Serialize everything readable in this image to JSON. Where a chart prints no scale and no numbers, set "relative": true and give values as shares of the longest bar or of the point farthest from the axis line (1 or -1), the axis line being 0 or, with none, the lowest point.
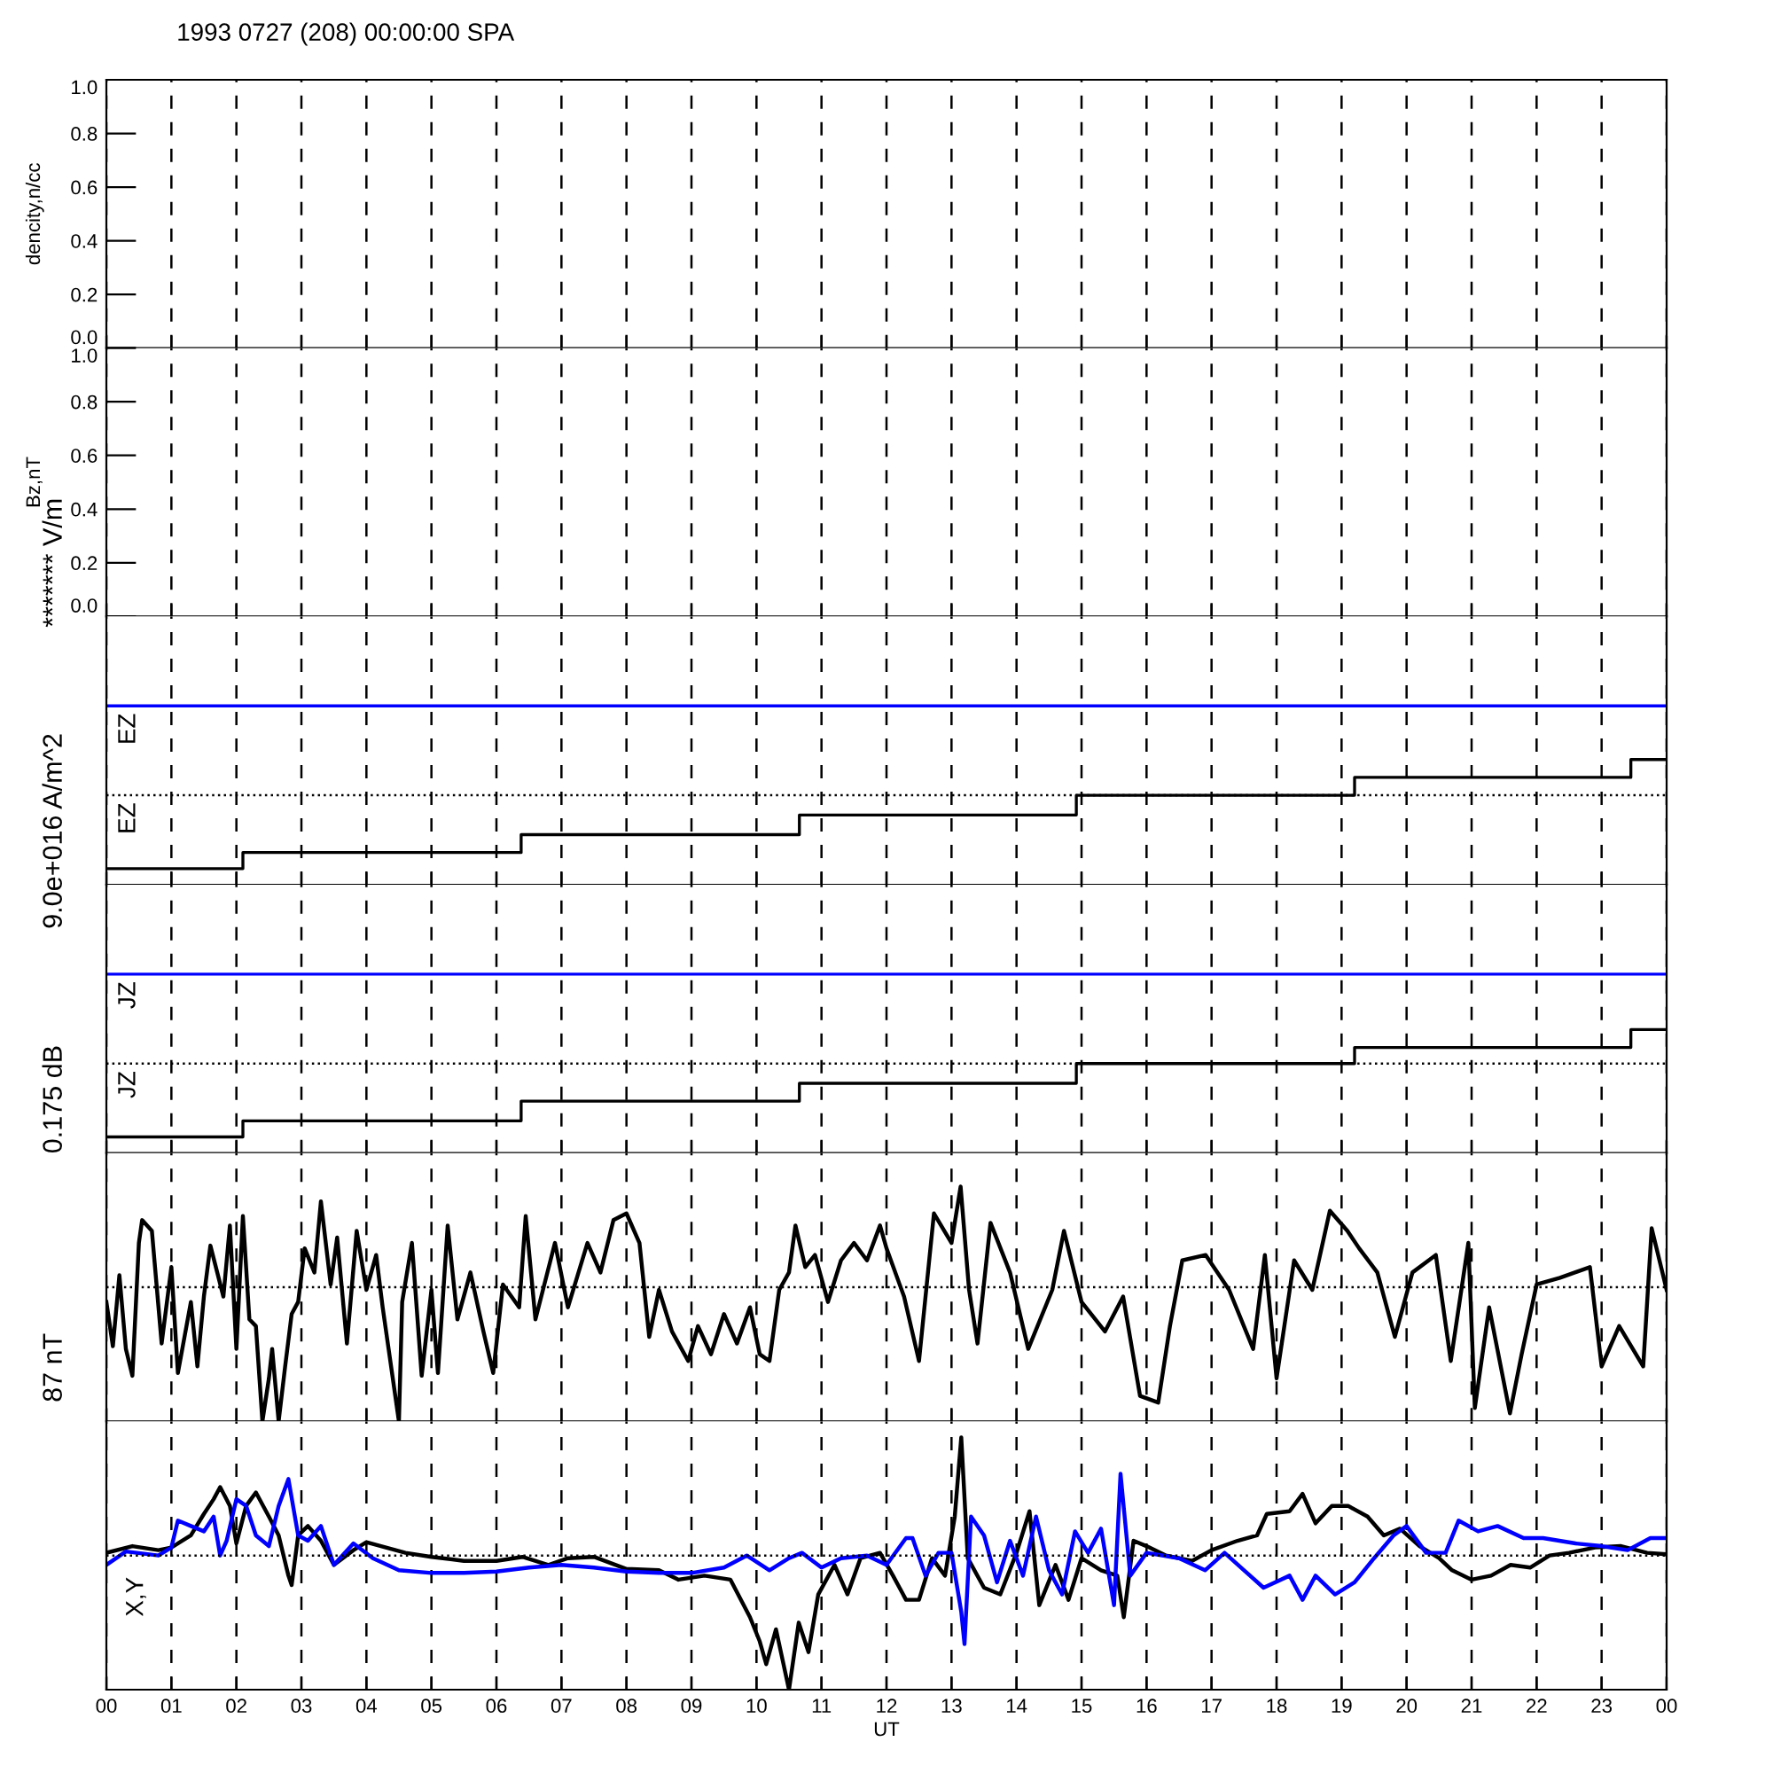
{
  "chart_data": [
    {
      "type": "line",
      "title": "1993 0727 (208) 00:00:00 SPA",
      "ylabel": "dencity,n/cc",
      "xlim": [
        0,
        24
      ],
      "ylim": [
        0,
        1
      ],
      "xticks": [
        0,
        1,
        2,
        3,
        4,
        5,
        6,
        7,
        8,
        9,
        10,
        11,
        12,
        13,
        14,
        15,
        16,
        17,
        18,
        19,
        20,
        21,
        22,
        23,
        24
      ],
      "yticks": [
        {
          "value": 0,
          "label": "0.0"
        },
        {
          "value": 0.2,
          "label": "0.2"
        },
        {
          "value": 0.4,
          "label": "0.4"
        },
        {
          "value": 0.6,
          "label": "0.6"
        },
        {
          "value": 0.8,
          "label": "0.8"
        },
        {
          "value": 1,
          "label": "1.0"
        }
      ],
      "grid": "x",
      "tick_labels": "y"
    },
    {
      "type": "line",
      "ylabel": "Bz,nT",
      "xlim": [
        0,
        24
      ],
      "ylim": [
        0,
        1
      ],
      "xticks": [
        0,
        1,
        2,
        3,
        4,
        5,
        6,
        7,
        8,
        9,
        10,
        11,
        12,
        13,
        14,
        15,
        16,
        17,
        18,
        19,
        20,
        21,
        22,
        23,
        24
      ],
      "yticks": [
        {
          "value": 0,
          "label": "0.0"
        },
        {
          "value": 0.2,
          "label": "0.2"
        },
        {
          "value": 0.4,
          "label": "0.4"
        },
        {
          "value": 0.6,
          "label": "0.6"
        },
        {
          "value": 0.8,
          "label": "0.8"
        },
        {
          "value": 1,
          "label": "1.0"
        }
      ],
      "grid": "x",
      "tick_labels": "y"
    },
    {
      "type": "step",
      "ylabel": "******* V/m",
      "relative": true,
      "xlim": [
        0,
        24
      ],
      "xticks": [
        0,
        1,
        2,
        3,
        4,
        5,
        6,
        7,
        8,
        9,
        10,
        11,
        12,
        13,
        14,
        15,
        16,
        17,
        18,
        19,
        20,
        21,
        22,
        23,
        24
      ],
      "series": [
        {
          "color": "#000000",
          "x": [
            0,
            2.1,
            6.38,
            10.66,
            14.92,
            19.2,
            23.45,
            24
          ],
          "values": [
            0.09,
            0.18,
            0.28,
            0.39,
            0.5,
            0.6,
            0.7,
            0.7
          ]
        },
        {
          "color": "#0000ff",
          "x": [
            0,
            24
          ],
          "values": [
            1,
            1
          ]
        }
      ],
      "ref_lines": [
        {
          "axis": "y",
          "value": 0.5,
          "color": "#000000",
          "line_style": "dotted"
        }
      ],
      "annotations": [
        {
          "text": "EZ",
          "y": 1
        },
        {
          "text": "EZ",
          "y": 0.5
        }
      ],
      "grid": "x",
      "tick_labels": false
    },
    {
      "type": "step",
      "ylabel": "9.0e+016 A/m^2",
      "relative": true,
      "xlim": [
        0,
        24
      ],
      "xticks": [
        0,
        1,
        2,
        3,
        4,
        5,
        6,
        7,
        8,
        9,
        10,
        11,
        12,
        13,
        14,
        15,
        16,
        17,
        18,
        19,
        20,
        21,
        22,
        23,
        24
      ],
      "series": [
        {
          "color": "#000000",
          "x": [
            0,
            2.1,
            6.38,
            10.66,
            14.92,
            19.2,
            23.45,
            24
          ],
          "values": [
            0.09,
            0.18,
            0.29,
            0.39,
            0.5,
            0.59,
            0.69,
            0.69
          ]
        },
        {
          "color": "#0000ff",
          "x": [
            0,
            24
          ],
          "values": [
            1,
            1
          ]
        }
      ],
      "ref_lines": [
        {
          "axis": "y",
          "value": 0.5,
          "color": "#000000",
          "line_style": "dotted"
        }
      ],
      "annotations": [
        {
          "text": "JZ",
          "y": 1
        },
        {
          "text": "JZ",
          "y": 0.5
        }
      ],
      "grid": "x",
      "tick_labels": false
    },
    {
      "type": "line",
      "ylabel": "0.175 dB",
      "relative": true,
      "xlim": [
        0,
        24
      ],
      "xticks": [
        0,
        1,
        2,
        3,
        4,
        5,
        6,
        7,
        8,
        9,
        10,
        11,
        12,
        13,
        14,
        15,
        16,
        17,
        18,
        19,
        20,
        21,
        22,
        23,
        24
      ],
      "series": [
        {
          "color": "#000000",
          "x": [
            0,
            0.1,
            0.2,
            0.3,
            0.4,
            0.5,
            0.55,
            0.7,
            0.85,
            1.0,
            1.1,
            1.3,
            1.4,
            1.5,
            1.6,
            1.8,
            1.9,
            2.0,
            2.1,
            2.2,
            2.3,
            2.4,
            2.5,
            2.55,
            2.65,
            2.75,
            2.85,
            2.95,
            3.05,
            3.2,
            3.3,
            3.45,
            3.55,
            3.7,
            3.85,
            4.0,
            4.15,
            4.25,
            4.5,
            4.55,
            4.7,
            4.85,
            5.0,
            5.1,
            5.25,
            5.4,
            5.6,
            5.8,
            5.95,
            6.1,
            6.35,
            6.45,
            6.6,
            6.9,
            7.1,
            7.4,
            7.6,
            7.8,
            8.0,
            8.2,
            8.35,
            8.5,
            8.7,
            8.95,
            9.1,
            9.3,
            9.5,
            9.7,
            9.9,
            10.05,
            10.2,
            10.35,
            10.5,
            10.6,
            10.75,
            10.9,
            11.1,
            11.3,
            11.5,
            11.7,
            11.9,
            12.0,
            12.27,
            12.5,
            12.73,
            13.0,
            13.14,
            13.27,
            13.4,
            13.6,
            13.9,
            14.18,
            14.55,
            14.73,
            15.0,
            15.36,
            15.64,
            15.9,
            16.18,
            16.36,
            16.55,
            16.91,
            17.27,
            17.64,
            17.82,
            18.0,
            18.27,
            18.55,
            18.82,
            19.09,
            19.27,
            19.55,
            19.82,
            20.09,
            20.45,
            20.68,
            20.95,
            21.05,
            21.27,
            21.59,
            21.77,
            22.0,
            22.36,
            22.82,
            23.0,
            23.27,
            23.64,
            23.77,
            24.0
          ],
          "values": [
            -0.11,
            -0.44,
            0.09,
            -0.46,
            -0.66,
            0.33,
            0.5,
            0.42,
            -0.42,
            0.15,
            -0.64,
            -0.11,
            -0.59,
            -0.07,
            0.31,
            -0.07,
            0.46,
            -0.46,
            0.53,
            -0.24,
            -0.29,
            -1,
            -0.68,
            -0.46,
            -1,
            -0.59,
            -0.2,
            -0.11,
            0.29,
            0.11,
            0.64,
            0.02,
            0.37,
            -0.42,
            0.42,
            -0.02,
            0.24,
            -0.15,
            -1,
            -0.11,
            0.33,
            -0.66,
            -0.02,
            -0.64,
            0.46,
            -0.24,
            0.11,
            -0.33,
            -0.64,
            0.02,
            -0.15,
            0.53,
            -0.24,
            0.33,
            -0.15,
            0.33,
            0.11,
            0.5,
            0.55,
            0.33,
            -0.37,
            -0.02,
            -0.33,
            -0.55,
            -0.29,
            -0.5,
            -0.2,
            -0.42,
            -0.15,
            -0.5,
            -0.55,
            -0.02,
            0.11,
            0.46,
            0.15,
            0.24,
            -0.11,
            0.2,
            0.33,
            0.2,
            0.46,
            0.29,
            -0.07,
            -0.55,
            0.55,
            0.33,
            0.75,
            -0.02,
            -0.42,
            0.48,
            0.11,
            -0.46,
            -0.02,
            0.42,
            -0.11,
            -0.33,
            -0.07,
            -0.81,
            -0.86,
            -0.29,
            0.2,
            0.24,
            -0.02,
            -0.46,
            0.24,
            -0.68,
            0.2,
            -0.02,
            0.57,
            0.42,
            0.29,
            0.11,
            -0.37,
            0.11,
            0.24,
            -0.55,
            0.33,
            -0.9,
            -0.15,
            -0.94,
            -0.5,
            0.02,
            0.07,
            0.15,
            -0.59,
            -0.29,
            -0.59,
            0.44,
            -0.02
          ]
        }
      ],
      "ref_lines": [
        {
          "axis": "y",
          "value": 0,
          "color": "#000000",
          "line_style": "dotted"
        }
      ],
      "grid": "x",
      "tick_labels": false
    },
    {
      "type": "line",
      "ylabel": "87 nT",
      "xlabel": "UT",
      "relative": true,
      "xlim": [
        0,
        24
      ],
      "xticks": [
        {
          "value": 0,
          "label": "00"
        },
        {
          "value": 1,
          "label": "01"
        },
        {
          "value": 2,
          "label": "02"
        },
        {
          "value": 3,
          "label": "03"
        },
        {
          "value": 4,
          "label": "04"
        },
        {
          "value": 5,
          "label": "05"
        },
        {
          "value": 6,
          "label": "06"
        },
        {
          "value": 7,
          "label": "07"
        },
        {
          "value": 8,
          "label": "08"
        },
        {
          "value": 9,
          "label": "09"
        },
        {
          "value": 10,
          "label": "10"
        },
        {
          "value": 11,
          "label": "11"
        },
        {
          "value": 12,
          "label": "12"
        },
        {
          "value": 13,
          "label": "13"
        },
        {
          "value": 14,
          "label": "14"
        },
        {
          "value": 15,
          "label": "15"
        },
        {
          "value": 16,
          "label": "16"
        },
        {
          "value": 17,
          "label": "17"
        },
        {
          "value": 18,
          "label": "18"
        },
        {
          "value": 19,
          "label": "19"
        },
        {
          "value": 20,
          "label": "20"
        },
        {
          "value": 21,
          "label": "21"
        },
        {
          "value": 22,
          "label": "22"
        },
        {
          "value": 23,
          "label": "23"
        },
        {
          "value": 24,
          "label": "00"
        }
      ],
      "series": [
        {
          "color": "#000000",
          "x": [
            0,
            0.4,
            0.8,
            1.0,
            1.3,
            1.5,
            1.65,
            1.75,
            1.9,
            2.0,
            2.15,
            2.3,
            2.5,
            2.65,
            2.8,
            2.85,
            2.95,
            3.1,
            3.3,
            3.5,
            3.8,
            4.0,
            4.3,
            4.6,
            5.0,
            5.5,
            6.0,
            6.4,
            6.8,
            7.1,
            7.5,
            8.0,
            8.5,
            8.8,
            9.2,
            9.6,
            9.9,
            10.05,
            10.15,
            10.3,
            10.5,
            10.65,
            10.8,
            10.95,
            11.2,
            11.4,
            11.6,
            11.9,
            12.1,
            12.3,
            12.5,
            12.7,
            12.9,
            13.05,
            13.15,
            13.25,
            13.5,
            13.75,
            14.0,
            14.2,
            14.35,
            14.6,
            14.8,
            15.0,
            15.3,
            15.55,
            15.65,
            15.8,
            16.0,
            16.3,
            16.7,
            17.0,
            17.4,
            17.7,
            17.85,
            18.2,
            18.4,
            18.6,
            18.85,
            19.1,
            19.4,
            19.65,
            19.9,
            20.2,
            20.5,
            20.7,
            21.0,
            21.3,
            21.6,
            21.9,
            22.2,
            22.5,
            22.9,
            23.3,
            23.7,
            24
          ],
          "values": [
            0.02,
            0.07,
            0.04,
            0.06,
            0.15,
            0.31,
            0.42,
            0.51,
            0.37,
            0.09,
            0.37,
            0.47,
            0.29,
            0.15,
            -0.15,
            -0.22,
            0.15,
            0.22,
            0.11,
            -0.07,
            0.04,
            0.1,
            0.06,
            0.02,
            -0.01,
            -0.04,
            -0.04,
            -0.01,
            -0.07,
            -0.02,
            -0.01,
            -0.1,
            -0.11,
            -0.18,
            -0.15,
            -0.18,
            -0.46,
            -0.64,
            -0.81,
            -0.55,
            -1,
            -0.5,
            -0.72,
            -0.29,
            -0.07,
            -0.29,
            -0.02,
            0.02,
            -0.15,
            -0.33,
            -0.33,
            -0.02,
            -0.15,
            0.29,
            0.88,
            -0.02,
            -0.24,
            -0.29,
            0.02,
            0.33,
            -0.37,
            -0.07,
            -0.33,
            -0.02,
            -0.11,
            -0.15,
            -0.46,
            0.11,
            0.07,
            0.0,
            -0.04,
            0.04,
            0.11,
            0.15,
            0.31,
            0.33,
            0.46,
            0.24,
            0.37,
            0.37,
            0.29,
            0.15,
            0.2,
            0.07,
            -0.02,
            -0.11,
            -0.18,
            -0.15,
            -0.07,
            -0.09,
            0.0,
            0.02,
            0.06,
            0.07,
            0.02,
            0.01
          ]
        },
        {
          "color": "#0000ff",
          "x": [
            0,
            0.3,
            0.8,
            1.0,
            1.1,
            1.3,
            1.5,
            1.65,
            1.75,
            1.85,
            2.0,
            2.15,
            2.3,
            2.5,
            2.65,
            2.8,
            2.95,
            3.1,
            3.3,
            3.5,
            3.8,
            4.1,
            4.5,
            5.0,
            5.5,
            6.0,
            6.5,
            7.0,
            7.5,
            8.0,
            8.5,
            9.0,
            9.5,
            9.85,
            10.2,
            10.5,
            10.7,
            11.0,
            11.3,
            11.7,
            12.0,
            12.3,
            12.4,
            12.6,
            12.8,
            13.0,
            13.15,
            13.2,
            13.3,
            13.5,
            13.7,
            13.9,
            14.1,
            14.3,
            14.5,
            14.7,
            14.9,
            15.1,
            15.3,
            15.5,
            15.6,
            15.75,
            16.0,
            16.5,
            16.9,
            17.2,
            17.5,
            17.8,
            18.2,
            18.4,
            18.6,
            18.9,
            19.2,
            19.5,
            19.8,
            20.0,
            20.3,
            20.6,
            20.8,
            21.1,
            21.4,
            21.8,
            22.1,
            22.6,
            23.0,
            23.4,
            23.75,
            24
          ],
          "values": [
            -0.07,
            0.03,
            0.0,
            0.06,
            0.26,
            0.22,
            0.18,
            0.29,
            0.0,
            0.11,
            0.42,
            0.37,
            0.15,
            0.07,
            0.37,
            0.57,
            0.15,
            0.11,
            0.22,
            -0.07,
            0.09,
            -0.02,
            -0.11,
            -0.13,
            -0.13,
            -0.12,
            -0.09,
            -0.07,
            -0.09,
            -0.12,
            -0.13,
            -0.13,
            -0.09,
            0.0,
            -0.11,
            -0.02,
            0.02,
            -0.09,
            -0.02,
            0.0,
            -0.07,
            0.13,
            0.13,
            -0.15,
            0.02,
            0.02,
            -0.42,
            -0.66,
            0.29,
            0.15,
            -0.2,
            0.11,
            -0.15,
            0.29,
            -0.11,
            -0.29,
            0.18,
            0.02,
            0.2,
            -0.37,
            0.61,
            -0.15,
            0.02,
            -0.02,
            -0.11,
            0.02,
            -0.11,
            -0.24,
            -0.15,
            -0.33,
            -0.15,
            -0.29,
            -0.2,
            -0.02,
            0.15,
            0.22,
            0.02,
            0.02,
            0.26,
            0.18,
            0.22,
            0.13,
            0.13,
            0.09,
            0.07,
            0.04,
            0.13,
            0.13
          ]
        }
      ],
      "ref_lines": [
        {
          "axis": "y",
          "value": 0,
          "color": "#000000",
          "line_style": "dotted"
        }
      ],
      "annotations": [
        "X,Y"
      ],
      "grid": "x",
      "tick_labels": "x"
    }
  ]
}
